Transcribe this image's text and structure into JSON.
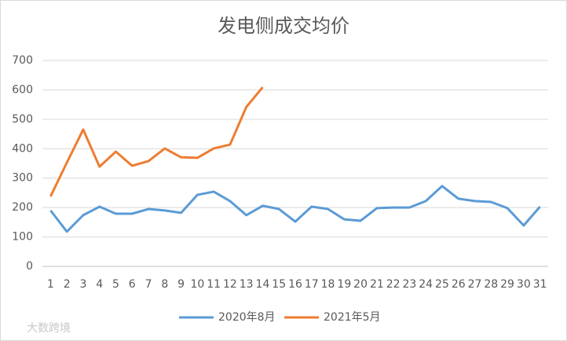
{
  "chart_data": {
    "type": "line",
    "title": "发电侧成交均价",
    "categories": [
      1,
      2,
      3,
      4,
      5,
      6,
      7,
      8,
      9,
      10,
      11,
      12,
      13,
      14,
      15,
      16,
      17,
      18,
      19,
      20,
      21,
      22,
      23,
      24,
      25,
      26,
      27,
      28,
      29,
      30,
      31
    ],
    "series": [
      {
        "name": "2020年8月",
        "color": "#5b9bd5",
        "values": [
          190,
          118,
          174,
          203,
          179,
          179,
          195,
          190,
          182,
          243,
          254,
          222,
          174,
          206,
          195,
          152,
          203,
          195,
          160,
          155,
          198,
          200,
          200,
          222,
          273,
          230,
          222,
          219,
          198,
          139,
          203
        ]
      },
      {
        "name": "2021年5月",
        "color": "#ed7d31",
        "values": [
          238,
          353,
          465,
          339,
          390,
          342,
          358,
          401,
          371,
          369,
          401,
          414,
          542,
          609,
          null,
          null,
          null,
          null,
          null,
          null,
          null,
          null,
          null,
          null,
          null,
          null,
          null,
          null,
          null,
          null,
          null
        ]
      }
    ],
    "ylim": [
      0,
      700
    ],
    "yticks": [
      0,
      100,
      200,
      300,
      400,
      500,
      600,
      700
    ],
    "grid": true,
    "legend": "bottom",
    "watermark": "大数跨境"
  }
}
